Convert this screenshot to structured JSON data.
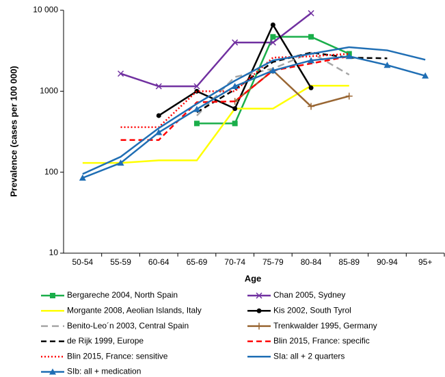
{
  "chart_data": {
    "type": "line",
    "y_label": "Prevalence (cases per 100 000)",
    "x_label": "Age",
    "categories": [
      "50-54",
      "55-59",
      "60-64",
      "65-69",
      "70-74",
      "75-79",
      "80-84",
      "85-89",
      "90-94",
      "95+"
    ],
    "ylim": [
      10,
      10000
    ],
    "yticks": [
      10,
      100,
      1000,
      {
        "value": 10000,
        "label": "10 000"
      }
    ],
    "log": true,
    "grid": false,
    "legend": "bottom",
    "series": [
      {
        "name": "Bergareche 2004, North Spain",
        "color": "#1aae4a",
        "dash": "solid",
        "marker": "square",
        "values": [
          null,
          null,
          null,
          400,
          400,
          4700,
          4700,
          2900,
          null,
          null
        ]
      },
      {
        "name": "Chan 2005, Sydney",
        "color": "#7030a0",
        "dash": "solid",
        "marker": "x",
        "values": [
          null,
          1650,
          1150,
          1150,
          4000,
          4000,
          9200,
          null,
          null,
          null
        ]
      },
      {
        "name": "Morgante 2008, Aeolian Islands, Italy",
        "color": "#ffff00",
        "dash": "solid",
        "marker": "none",
        "values": [
          130,
          130,
          140,
          140,
          610,
          610,
          1170,
          1170,
          null,
          null
        ]
      },
      {
        "name": "Kis 2002, South Tyrol",
        "color": "#000000",
        "dash": "solid",
        "marker": "circle",
        "values": [
          null,
          null,
          500,
          1000,
          610,
          6600,
          1100,
          null,
          null,
          null
        ]
      },
      {
        "name": "Benito-Leo´n 2003, Central Spain",
        "color": "#a6a6a6",
        "dash": "longdash",
        "marker": "none",
        "values": [
          null,
          null,
          null,
          500,
          1500,
          1900,
          3000,
          1600,
          null,
          null
        ]
      },
      {
        "name": "Trenkwalder 1995, Germany",
        "color": "#996633",
        "dash": "solid",
        "marker": "plus",
        "values": [
          null,
          null,
          null,
          null,
          750,
          1800,
          650,
          870,
          null,
          null
        ]
      },
      {
        "name": "de Rijk 1999, Europe",
        "color": "#000000",
        "dash": "dash",
        "marker": "none",
        "values": [
          null,
          null,
          null,
          550,
          1050,
          2300,
          3000,
          2600,
          2550,
          null
        ]
      },
      {
        "name": "Blin 2015, France: specific",
        "color": "#ff0000",
        "dash": "dash",
        "marker": "none",
        "values": [
          null,
          250,
          250,
          730,
          750,
          1800,
          2200,
          2700,
          null,
          null
        ]
      },
      {
        "name": "Blin 2015, France: sensitive",
        "color": "#ff0000",
        "dash": "dot",
        "marker": "none",
        "values": [
          null,
          360,
          360,
          1000,
          1000,
          2600,
          2700,
          2900,
          null,
          null
        ]
      },
      {
        "name": "SIa: all + 2 quarters",
        "color": "#1f6eb4",
        "dash": "solid",
        "marker": "none",
        "values": [
          95,
          155,
          350,
          700,
          1350,
          2400,
          2900,
          3500,
          3200,
          2450
        ]
      },
      {
        "name": "SIb: all + medication",
        "color": "#1f6eb4",
        "dash": "solid",
        "marker": "triangle",
        "values": [
          85,
          130,
          310,
          600,
          1150,
          1800,
          2400,
          2700,
          2100,
          1550
        ]
      }
    ]
  }
}
